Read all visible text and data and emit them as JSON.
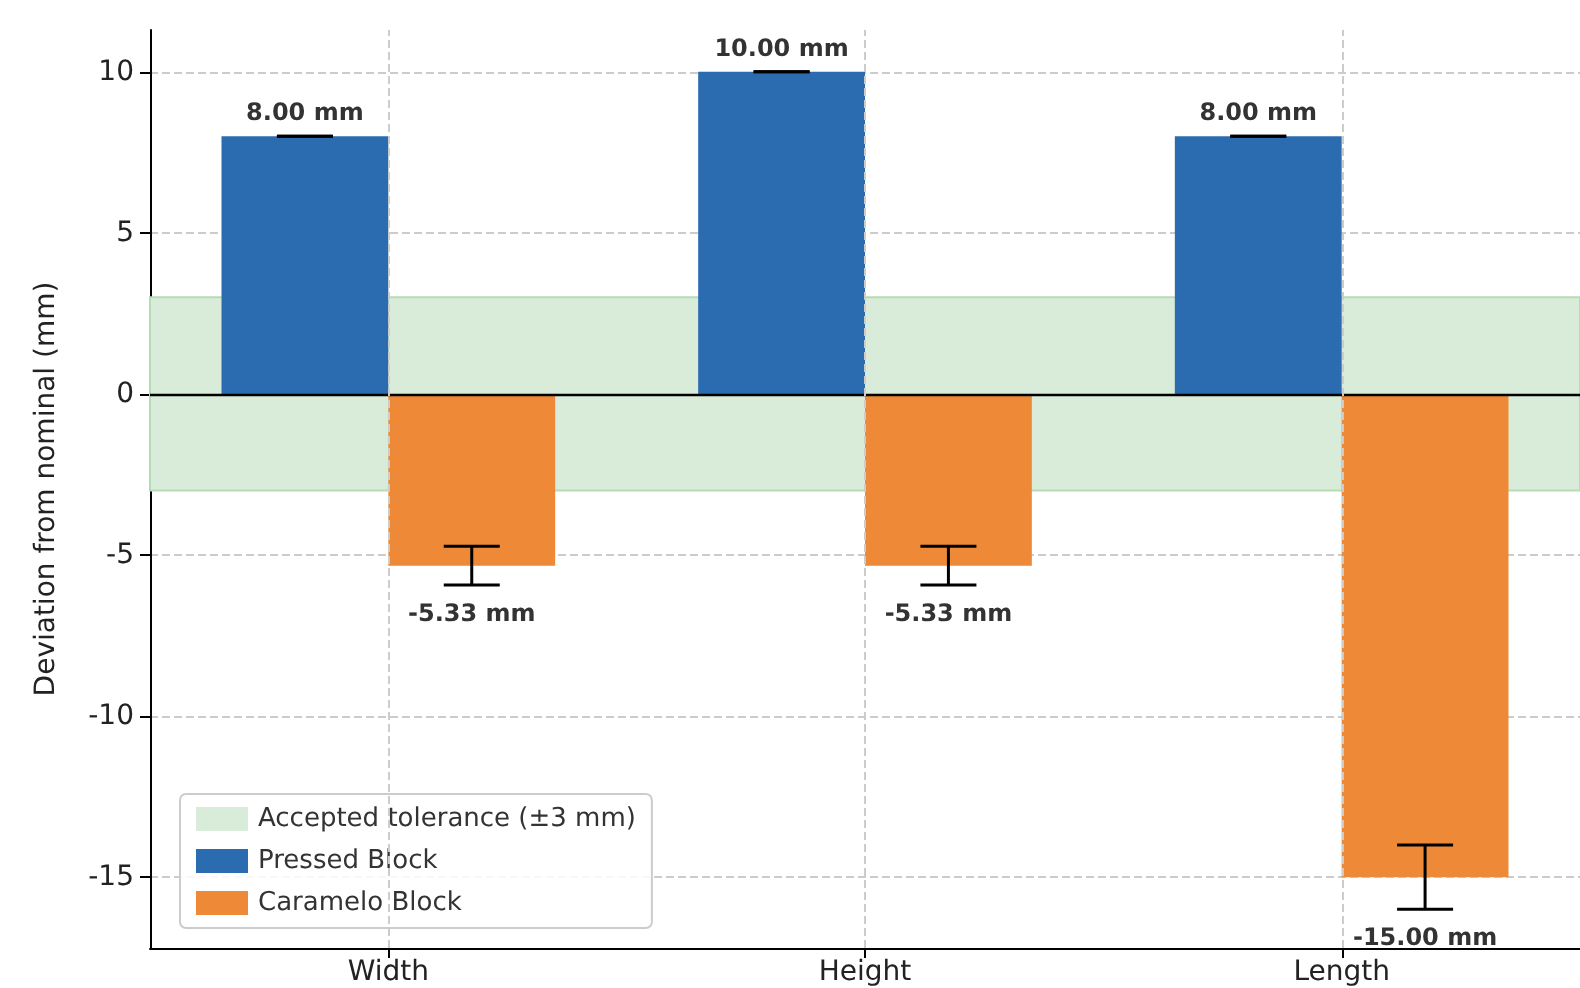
{
  "chart_data": {
    "type": "bar",
    "ylabel": "Deviation from nominal (mm)",
    "categories": [
      "Width",
      "Height",
      "Length"
    ],
    "series": [
      {
        "name": "Pressed Block",
        "color": "#2b6cb0",
        "values": [
          8,
          10,
          8
        ],
        "errors": [
          0,
          0,
          0
        ],
        "value_labels": [
          "8.00 mm",
          "10.00 mm",
          "8.00 mm"
        ]
      },
      {
        "name": "Caramelo Block",
        "color": "#ee8a37",
        "values": [
          -5.33,
          -5.33,
          -15
        ],
        "errors": [
          0.6,
          0.6,
          1
        ],
        "value_labels": [
          "-5.33 mm",
          "-5.33 mm",
          "-15.00 mm"
        ]
      }
    ],
    "ylim": [
      -17.2,
      11.3
    ],
    "yticks": [
      -15,
      -10,
      -5,
      0,
      5,
      10
    ],
    "bands": [
      {
        "axis": "y",
        "from": -3,
        "to": 3,
        "label": "Accepted tolerance (±3 mm)",
        "color": "#d9ecd9"
      }
    ],
    "ref_lines": [
      {
        "axis": "y",
        "value": 0,
        "color": "#000000"
      }
    ],
    "grid": true,
    "legend": "bottom left"
  }
}
